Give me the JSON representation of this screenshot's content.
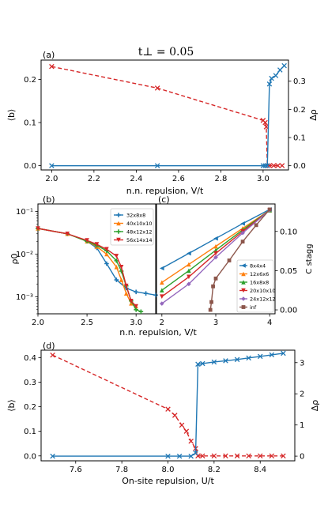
{
  "figure": {
    "title": "t⊥ = 0.05",
    "colors": {
      "red": "#d62728",
      "blue": "#1f77b4",
      "orange": "#ff7f0e",
      "green": "#2ca02c",
      "purple": "#9467bd",
      "brown": "#8c564b"
    }
  },
  "chart_data": [
    {
      "panel": "(a)",
      "type": "line",
      "xlabel": "n.n. repulsion, V/t",
      "ylabel_left": "⟨b⟩",
      "ylabel_right": "Δρ",
      "xlim": [
        1.95,
        3.12
      ],
      "ylim_left": [
        -0.01,
        0.245
      ],
      "ylim_right": [
        -0.015,
        0.375
      ],
      "xticks": [
        2.0,
        2.2,
        2.4,
        2.6,
        2.8,
        3.0
      ],
      "yticks_left": [
        0.0,
        0.1,
        0.2
      ],
      "yticks_right": [
        0.0,
        0.1,
        0.2,
        0.3
      ],
      "series": [
        {
          "axis": "left",
          "color": "red",
          "style": "dashed",
          "x": [
            2.0,
            2.5,
            3.0,
            3.01,
            3.015,
            3.02,
            3.03,
            3.05,
            3.07,
            3.09
          ],
          "y": [
            0.23,
            0.18,
            0.105,
            0.1,
            0.09,
            0.0,
            0.0,
            0.0,
            0.0,
            0.0
          ]
        },
        {
          "axis": "right",
          "color": "blue",
          "style": "solid",
          "x": [
            2.0,
            2.5,
            3.0,
            3.01,
            3.02,
            3.03,
            3.04,
            3.06,
            3.08,
            3.1
          ],
          "y": [
            0.0,
            0.0,
            0.0,
            0.0,
            0.0,
            0.29,
            0.31,
            0.32,
            0.34,
            0.355
          ]
        }
      ]
    },
    {
      "panel": "(b)",
      "type": "line",
      "xlabel": "n.n. repulsion, V/t",
      "ylabel": "ρ0",
      "yscale": "log",
      "xlim": [
        2.0,
        3.2
      ],
      "ylim": [
        0.0004,
        0.15
      ],
      "xticks": [
        2.0,
        2.5,
        3.0
      ],
      "xticklabels": [
        "2.0",
        "2.5",
        "3.0"
      ],
      "yticklabels": [
        "10⁻³",
        "10⁻²",
        "10⁻¹"
      ],
      "legend": "top-right",
      "series": [
        {
          "name": "32x8x8",
          "color": "blue",
          "x": [
            2.0,
            2.3,
            2.5,
            2.6,
            2.7,
            2.8,
            2.9,
            3.0,
            3.1,
            3.2
          ],
          "y": [
            0.04,
            0.03,
            0.02,
            0.014,
            0.006,
            0.0025,
            0.0016,
            0.0013,
            0.0012,
            0.0011
          ]
        },
        {
          "name": "40x10x10",
          "color": "orange",
          "x": [
            2.0,
            2.3,
            2.5,
            2.6,
            2.7,
            2.8,
            2.85,
            2.9,
            2.95,
            3.0
          ],
          "y": [
            0.04,
            0.03,
            0.02,
            0.015,
            0.01,
            0.005,
            0.0025,
            0.0012,
            0.0007,
            0.0006
          ]
        },
        {
          "name": "48x12x12",
          "color": "green",
          "x": [
            2.0,
            2.3,
            2.5,
            2.6,
            2.7,
            2.8,
            2.85,
            2.9,
            2.95,
            3.0,
            3.05
          ],
          "y": [
            0.04,
            0.03,
            0.02,
            0.016,
            0.012,
            0.007,
            0.004,
            0.0018,
            0.0008,
            0.0005,
            0.00045
          ]
        },
        {
          "name": "56x14x14",
          "color": "red",
          "x": [
            2.0,
            2.3,
            2.5,
            2.6,
            2.7,
            2.8,
            2.85,
            2.9,
            2.95,
            3.0
          ],
          "y": [
            0.04,
            0.03,
            0.021,
            0.017,
            0.013,
            0.009,
            0.005,
            0.0018,
            0.0008,
            0.0006
          ]
        }
      ]
    },
    {
      "panel": "(c)",
      "type": "line",
      "ylabel": "C_stagg",
      "xlim": [
        1.9,
        4.1
      ],
      "ylim": [
        -0.005,
        0.135
      ],
      "xticks": [
        2,
        3,
        4
      ],
      "yticks": [
        0.0,
        0.05,
        0.1
      ],
      "yticklabels": [
        "0.00",
        "0.05",
        "0.10"
      ],
      "legend": "bottom-right",
      "series": [
        {
          "name": "8x4x4",
          "color": "blue",
          "x": [
            2.0,
            2.5,
            3.0,
            3.5,
            4.0
          ],
          "y": [
            0.053,
            0.072,
            0.091,
            0.11,
            0.128
          ]
        },
        {
          "name": "12x6x6",
          "color": "orange",
          "x": [
            2.0,
            2.5,
            3.0,
            3.5,
            4.0
          ],
          "y": [
            0.035,
            0.058,
            0.081,
            0.104,
            0.127
          ]
        },
        {
          "name": "16x8x8",
          "color": "green",
          "x": [
            2.0,
            2.5,
            3.0,
            3.5,
            4.0
          ],
          "y": [
            0.025,
            0.05,
            0.076,
            0.102,
            0.127
          ]
        },
        {
          "name": "20x10x10",
          "color": "red",
          "x": [
            2.0,
            2.5,
            3.0,
            3.5,
            4.0
          ],
          "y": [
            0.017,
            0.042,
            0.072,
            0.1,
            0.127
          ]
        },
        {
          "name": "24x12x12",
          "color": "purple",
          "x": [
            2.0,
            2.5,
            3.0,
            3.5,
            4.0
          ],
          "y": [
            0.008,
            0.033,
            0.067,
            0.098,
            0.127
          ]
        },
        {
          "name": "inf",
          "color": "brown",
          "x": [
            2.9,
            2.92,
            2.95,
            3.0,
            3.25,
            3.5,
            3.75,
            4.0
          ],
          "y": [
            0.0,
            0.01,
            0.03,
            0.04,
            0.063,
            0.087,
            0.108,
            0.128
          ]
        }
      ]
    },
    {
      "panel": "(d)",
      "type": "line",
      "xlabel": "On-site repulsion, U/t",
      "ylabel_left": "⟨b⟩",
      "ylabel_right": "Δρ",
      "xlim": [
        7.45,
        8.55
      ],
      "ylim_left": [
        -0.02,
        0.43
      ],
      "ylim_right": [
        -0.15,
        3.4
      ],
      "xticks": [
        7.6,
        7.8,
        8.0,
        8.2,
        8.4
      ],
      "yticks_left": [
        0.0,
        0.1,
        0.2,
        0.3,
        0.4
      ],
      "yticks_right": [
        0,
        1,
        2,
        3
      ],
      "series": [
        {
          "axis": "left",
          "color": "red",
          "style": "dashed",
          "x": [
            7.5,
            8.0,
            8.03,
            8.06,
            8.08,
            8.1,
            8.12,
            8.13,
            8.15,
            8.2,
            8.25,
            8.3,
            8.35,
            8.4,
            8.45,
            8.5
          ],
          "y": [
            0.41,
            0.19,
            0.165,
            0.125,
            0.1,
            0.06,
            0.03,
            0.0,
            0.0,
            0.0,
            0.0,
            0.0,
            0.0,
            0.0,
            0.0,
            0.0
          ]
        },
        {
          "axis": "right",
          "color": "blue",
          "style": "solid",
          "x": [
            7.5,
            8.0,
            8.05,
            8.1,
            8.12,
            8.13,
            8.15,
            8.2,
            8.25,
            8.3,
            8.35,
            8.4,
            8.45,
            8.5
          ],
          "y": [
            0.0,
            0.0,
            0.0,
            0.0,
            0.1,
            2.95,
            2.97,
            3.02,
            3.06,
            3.1,
            3.15,
            3.2,
            3.25,
            3.3
          ]
        }
      ]
    }
  ]
}
